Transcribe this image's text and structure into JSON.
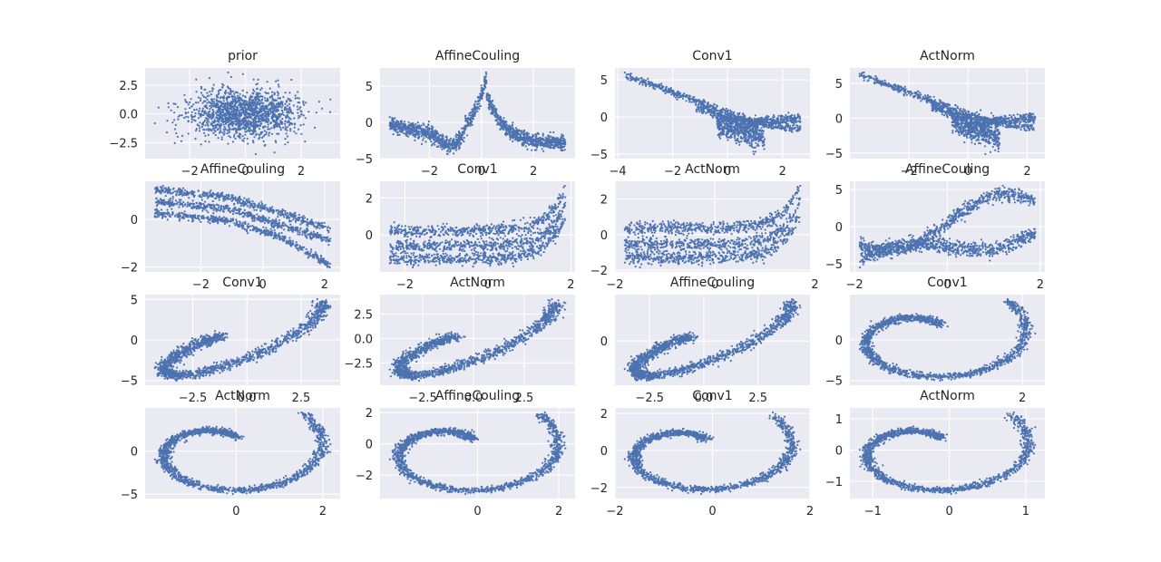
{
  "figure": {
    "background": "#ffffff",
    "axes_facecolor": "#eaeaf2",
    "grid_color": "#ffffff",
    "marker_color": "#4c72b0"
  },
  "chart_data": [
    {
      "type": "scatter",
      "title": "prior",
      "shape": "gaussian",
      "xlim": [
        -3.6,
        3.4
      ],
      "ylim": [
        -3.9,
        4.0
      ],
      "xticks": [
        {
          "v": -2,
          "label": "−2"
        },
        {
          "v": 0,
          "label": "0"
        },
        {
          "v": 2,
          "label": "2"
        }
      ],
      "yticks": [
        {
          "v": -2.5,
          "label": "−2.5"
        },
        {
          "v": 0,
          "label": "0.0"
        },
        {
          "v": 2.5,
          "label": "2.5"
        }
      ],
      "grid": true,
      "point_count": 1500
    },
    {
      "type": "scatter",
      "title": "AffineCouling",
      "shape": "spike",
      "xlim": [
        -3.9,
        3.6
      ],
      "ylim": [
        -5.0,
        7.5
      ],
      "xticks": [
        {
          "v": -2,
          "label": "−2"
        },
        {
          "v": 0,
          "label": "0"
        },
        {
          "v": 2,
          "label": "2"
        }
      ],
      "yticks": [
        {
          "v": -5,
          "label": "−5"
        },
        {
          "v": 0,
          "label": "0"
        },
        {
          "v": 5,
          "label": "5"
        }
      ],
      "grid": true,
      "point_count": 1500
    },
    {
      "type": "scatter",
      "title": "Conv1",
      "shape": "fan",
      "xlim": [
        -4.1,
        3.0
      ],
      "ylim": [
        -5.6,
        6.6
      ],
      "xticks": [
        {
          "v": -4,
          "label": "−4"
        },
        {
          "v": -2,
          "label": "−2"
        },
        {
          "v": 0,
          "label": "0"
        },
        {
          "v": 2,
          "label": "2"
        }
      ],
      "yticks": [
        {
          "v": -5,
          "label": "−5"
        },
        {
          "v": 0,
          "label": "0"
        },
        {
          "v": 5,
          "label": "5"
        }
      ],
      "grid": true,
      "point_count": 1500
    },
    {
      "type": "scatter",
      "title": "ActNorm",
      "shape": "fan",
      "xlim": [
        -4.0,
        2.6
      ],
      "ylim": [
        -5.8,
        7.2
      ],
      "xticks": [
        {
          "v": -2,
          "label": "−2"
        },
        {
          "v": 0,
          "label": "0"
        },
        {
          "v": 2,
          "label": "2"
        }
      ],
      "yticks": [
        {
          "v": -5,
          "label": "−5"
        },
        {
          "v": 0,
          "label": "0"
        },
        {
          "v": 5,
          "label": "5"
        }
      ],
      "grid": true,
      "point_count": 1500
    },
    {
      "type": "scatter",
      "title": "AffineCouling",
      "shape": "bands_down",
      "xlim": [
        -3.8,
        2.5
      ],
      "ylim": [
        -2.2,
        1.6
      ],
      "xticks": [
        {
          "v": -2,
          "label": "−2"
        },
        {
          "v": 0,
          "label": "0"
        },
        {
          "v": 2,
          "label": "2"
        }
      ],
      "yticks": [
        {
          "v": -2,
          "label": "−2"
        },
        {
          "v": 0,
          "label": "0"
        }
      ],
      "grid": true,
      "point_count": 1500
    },
    {
      "type": "scatter",
      "title": "Conv1",
      "shape": "bands_flat",
      "xlim": [
        -2.6,
        2.1
      ],
      "ylim": [
        -2.0,
        2.9
      ],
      "xticks": [
        {
          "v": -2,
          "label": "−2"
        },
        {
          "v": 0,
          "label": "0"
        },
        {
          "v": 2,
          "label": "2"
        }
      ],
      "yticks": [
        {
          "v": 0,
          "label": "0"
        },
        {
          "v": 2,
          "label": "2"
        }
      ],
      "grid": true,
      "point_count": 1500
    },
    {
      "type": "scatter",
      "title": "ActNorm",
      "shape": "bands_flat",
      "xlim": [
        -2.0,
        1.9
      ],
      "ylim": [
        -2.1,
        3.0
      ],
      "xticks": [
        {
          "v": -2,
          "label": "−2"
        },
        {
          "v": 0,
          "label": "0"
        },
        {
          "v": 2,
          "label": "2"
        }
      ],
      "yticks": [
        {
          "v": -2,
          "label": "−2"
        },
        {
          "v": 0,
          "label": "0"
        },
        {
          "v": 2,
          "label": "2"
        }
      ],
      "grid": true,
      "point_count": 1500
    },
    {
      "type": "scatter",
      "title": "AffineCouling",
      "shape": "snake",
      "xlim": [
        -2.1,
        2.1
      ],
      "ylim": [
        -6.1,
        6.1
      ],
      "xticks": [
        {
          "v": -2,
          "label": "−2"
        },
        {
          "v": 0,
          "label": "0"
        },
        {
          "v": 2,
          "label": "2"
        }
      ],
      "yticks": [
        {
          "v": -5,
          "label": "−5"
        },
        {
          "v": 0,
          "label": "0"
        },
        {
          "v": 5,
          "label": "5"
        }
      ],
      "grid": true,
      "point_count": 1500
    },
    {
      "type": "scatter",
      "title": "Conv1",
      "shape": "diag_spiral",
      "xlim": [
        -4.7,
        4.3
      ],
      "ylim": [
        -5.6,
        5.6
      ],
      "xticks": [
        {
          "v": -2.5,
          "label": "−2.5"
        },
        {
          "v": 0,
          "label": "0.0"
        },
        {
          "v": 2.5,
          "label": "2.5"
        }
      ],
      "yticks": [
        {
          "v": -5,
          "label": "−5"
        },
        {
          "v": 0,
          "label": "0"
        },
        {
          "v": 5,
          "label": "5"
        }
      ],
      "grid": true,
      "point_count": 1500
    },
    {
      "type": "scatter",
      "title": "ActNorm",
      "shape": "diag_spiral",
      "xlim": [
        -4.6,
        5.0
      ],
      "ylim": [
        -4.8,
        4.5
      ],
      "xticks": [
        {
          "v": -2.5,
          "label": "−2.5"
        },
        {
          "v": 0,
          "label": "0.0"
        },
        {
          "v": 2.5,
          "label": "2.5"
        }
      ],
      "yticks": [
        {
          "v": -2.5,
          "label": "−2.5"
        },
        {
          "v": 0,
          "label": "0.0"
        },
        {
          "v": 2.5,
          "label": "2.5"
        }
      ],
      "grid": true,
      "point_count": 1500
    },
    {
      "type": "scatter",
      "title": "AffineCouling",
      "shape": "diag_spiral_b",
      "xlim": [
        -4.1,
        4.9
      ],
      "ylim": [
        -4.0,
        4.2
      ],
      "xticks": [
        {
          "v": -2.5,
          "label": "−2.5"
        },
        {
          "v": 0,
          "label": "0.0"
        },
        {
          "v": 2.5,
          "label": "2.5"
        }
      ],
      "yticks": [
        {
          "v": 0,
          "label": "0"
        }
      ],
      "grid": true,
      "point_count": 1500
    },
    {
      "type": "scatter",
      "title": "Conv1",
      "shape": "spiral",
      "xlim": [
        -2.6,
        2.6
      ],
      "ylim": [
        -5.6,
        5.6
      ],
      "xticks": [
        {
          "v": 2,
          "label": "2"
        }
      ],
      "yticks": [
        {
          "v": -5,
          "label": "−5"
        },
        {
          "v": 0,
          "label": "0"
        }
      ],
      "grid": true,
      "point_count": 1500
    },
    {
      "type": "scatter",
      "title": "ActNorm",
      "shape": "spiral",
      "xlim": [
        -2.1,
        2.4
      ],
      "ylim": [
        -5.5,
        5.0
      ],
      "xticks": [
        {
          "v": 0,
          "label": "0"
        },
        {
          "v": 2,
          "label": "2"
        }
      ],
      "yticks": [
        {
          "v": -5,
          "label": "−5"
        },
        {
          "v": 0,
          "label": "0"
        }
      ],
      "grid": true,
      "point_count": 1500
    },
    {
      "type": "scatter",
      "title": "AffineCouling",
      "shape": "spiral",
      "xlim": [
        -2.4,
        2.4
      ],
      "ylim": [
        -3.5,
        2.3
      ],
      "xticks": [
        {
          "v": 0,
          "label": "0"
        },
        {
          "v": 2,
          "label": "2"
        }
      ],
      "yticks": [
        {
          "v": -2,
          "label": "−2"
        },
        {
          "v": 0,
          "label": "0"
        },
        {
          "v": 2,
          "label": "2"
        }
      ],
      "grid": true,
      "point_count": 1500
    },
    {
      "type": "scatter",
      "title": "Conv1",
      "shape": "spiral",
      "xlim": [
        -2.0,
        2.0
      ],
      "ylim": [
        -2.6,
        2.3
      ],
      "xticks": [
        {
          "v": -2,
          "label": "−2"
        },
        {
          "v": 0,
          "label": "0"
        },
        {
          "v": 2,
          "label": "2"
        }
      ],
      "yticks": [
        {
          "v": -2,
          "label": "−2"
        },
        {
          "v": 0,
          "label": "0"
        },
        {
          "v": 2,
          "label": "2"
        }
      ],
      "grid": true,
      "point_count": 1500
    },
    {
      "type": "scatter",
      "title": "ActNorm",
      "shape": "spiral",
      "xlim": [
        -1.3,
        1.25
      ],
      "ylim": [
        -1.55,
        1.35
      ],
      "xticks": [
        {
          "v": -1,
          "label": "−1"
        },
        {
          "v": 0,
          "label": "0"
        },
        {
          "v": 1,
          "label": "1"
        }
      ],
      "yticks": [
        {
          "v": -1,
          "label": "−1"
        },
        {
          "v": 0,
          "label": "0"
        },
        {
          "v": 1,
          "label": "1"
        }
      ],
      "grid": true,
      "point_count": 1500
    }
  ]
}
